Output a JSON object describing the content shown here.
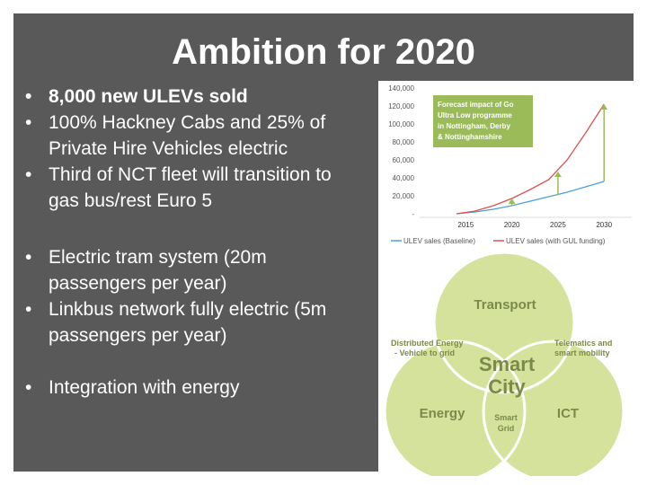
{
  "slide": {
    "title": "Ambition for 2020",
    "bullets_group1": [
      {
        "text": "8,000 new ULEVs sold",
        "bold": true
      },
      {
        "text": "100% Hackney Cabs and 25% of Private Hire Vehicles electric"
      },
      {
        "text": "Third of NCT fleet will transition to gas bus/rest Euro 5"
      }
    ],
    "bullets_group2": [
      {
        "text": "Electric tram system (20m passengers per year)"
      },
      {
        "text": "Linkbus network fully electric (5m passengers per year)"
      }
    ],
    "bullets_group3": [
      {
        "text": "Integration with energy"
      }
    ]
  },
  "chart_data": {
    "type": "line",
    "callout": [
      "Forecast impact of Go",
      "Ultra Low programme",
      "in Nottingham, Derby",
      "& Nottinghamshire"
    ],
    "ytick_labels": [
      "140,000",
      "120,000",
      "100,000",
      "80,000",
      "60,000",
      "40,000",
      "20,000",
      "-"
    ],
    "yticks": [
      140000,
      120000,
      100000,
      80000,
      60000,
      40000,
      20000,
      0
    ],
    "xtick_labels": [
      "2015",
      "2020",
      "2025",
      "2030"
    ],
    "xticks": [
      2015,
      2020,
      2025,
      2030
    ],
    "ylim": [
      0,
      140000
    ],
    "xlim": [
      2010,
      2033
    ],
    "series": [
      {
        "name": "ULEV sales (Baseline)",
        "color": "#4a9fd8",
        "x": [
          2014,
          2016,
          2018,
          2020,
          2022,
          2024,
          2026,
          2028,
          2030
        ],
        "values": [
          0,
          2000,
          5000,
          9000,
          14000,
          19000,
          24000,
          30000,
          36000
        ]
      },
      {
        "name": "ULEV sales (with GUL funding)",
        "color": "#d9534f",
        "x": [
          2014,
          2016,
          2018,
          2020,
          2022,
          2024,
          2026,
          2028,
          2030
        ],
        "values": [
          0,
          3000,
          9000,
          17000,
          27000,
          38000,
          60000,
          90000,
          122000
        ]
      }
    ],
    "arrows": [
      {
        "x": 2020,
        "from": 9000,
        "to": 17000
      },
      {
        "x": 2025,
        "from": 21000,
        "to": 47000
      },
      {
        "x": 2030,
        "from": 36000,
        "to": 122000
      }
    ]
  },
  "venn": {
    "center_label": [
      "Smart",
      "City"
    ],
    "circles": [
      {
        "label": "Transport"
      },
      {
        "label": "Energy"
      },
      {
        "label": "ICT"
      }
    ],
    "overlaps": {
      "transport_energy": [
        "Distributed Energy",
        "- Vehicle to grid"
      ],
      "transport_ict": [
        "Telematics and",
        "smart mobility"
      ],
      "energy_ict": [
        "Smart",
        "Grid"
      ]
    },
    "colors": {
      "fill": "#d4e29c",
      "stroke": "#ffffff",
      "text": "#7b8a4a"
    }
  }
}
